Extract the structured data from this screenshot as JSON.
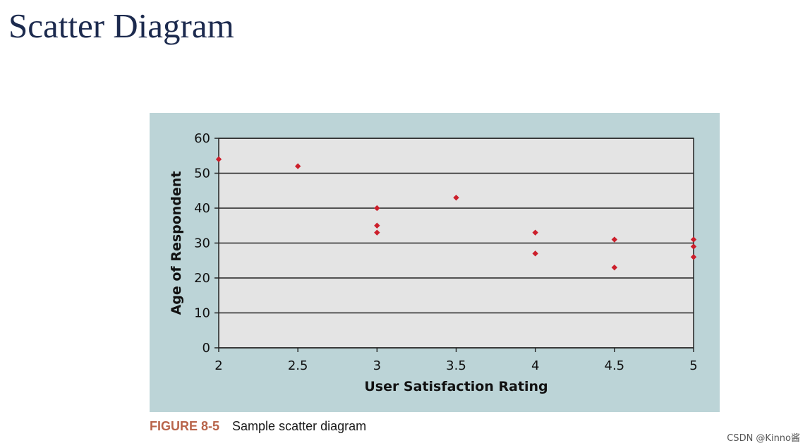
{
  "title": "Scatter Diagram",
  "caption": {
    "label": "FIGURE 8-5",
    "text": "Sample scatter diagram"
  },
  "watermark": "CSDN @Kinno酱",
  "colors": {
    "point": "#cc1f2b",
    "plot_bg": "#e4e4e4",
    "panel_bg": "#bcd4d7",
    "title": "#1c2a4e",
    "caption_label": "#b8644a"
  },
  "chart_data": {
    "type": "scatter",
    "title": "",
    "xlabel": "User Satisfaction Rating",
    "ylabel": "Age of Respondent",
    "xlim": [
      2,
      5
    ],
    "ylim": [
      0,
      60
    ],
    "x_ticks": [
      "2",
      "2.5",
      "3",
      "3.5",
      "4",
      "4.5",
      "5"
    ],
    "y_ticks": [
      "0",
      "10",
      "20",
      "30",
      "40",
      "50",
      "60"
    ],
    "grid": "horizontal",
    "series": [
      {
        "name": "Respondents",
        "points": [
          {
            "x": 2,
            "y": 54
          },
          {
            "x": 2.5,
            "y": 52
          },
          {
            "x": 3,
            "y": 40
          },
          {
            "x": 3,
            "y": 35
          },
          {
            "x": 3,
            "y": 33
          },
          {
            "x": 3.5,
            "y": 43
          },
          {
            "x": 4,
            "y": 33
          },
          {
            "x": 4,
            "y": 27
          },
          {
            "x": 4.5,
            "y": 31
          },
          {
            "x": 4.5,
            "y": 23
          },
          {
            "x": 5,
            "y": 31
          },
          {
            "x": 5,
            "y": 29
          },
          {
            "x": 5,
            "y": 26
          }
        ]
      }
    ]
  }
}
